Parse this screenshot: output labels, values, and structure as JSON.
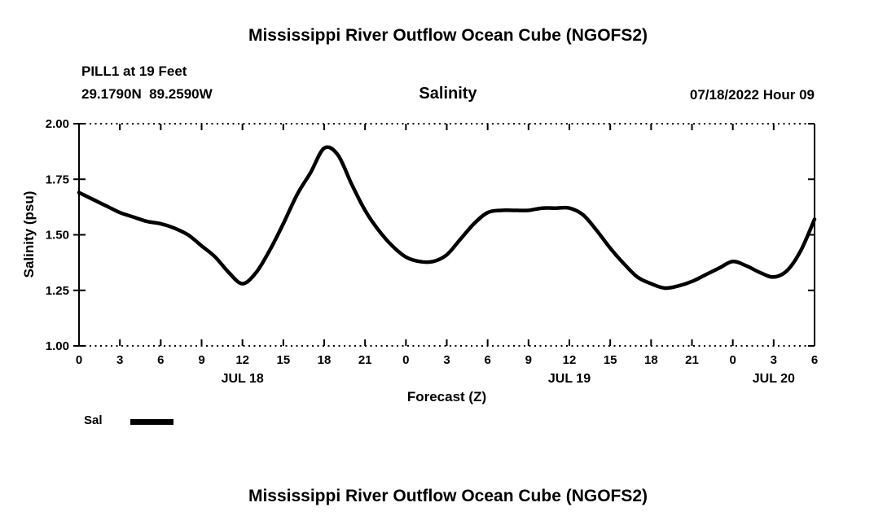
{
  "chart_data": {
    "type": "line",
    "title": "Mississippi River Outflow Ocean Cube (NGOFS2)",
    "subtitle": "Salinity",
    "station": "PILL1 at 19 Feet",
    "coordinates": "29.1790N  89.2590W",
    "datetime": "07/18/2022 Hour 09",
    "xlabel": "Forecast (Z)",
    "ylabel": "Salinity (psu)",
    "ylim": [
      1.0,
      2.0
    ],
    "xlim": [
      0,
      54
    ],
    "line_color": "#000000",
    "y_ticks": [
      {
        "value": 2.0,
        "label": "2.00"
      },
      {
        "value": 1.75,
        "label": "1.75"
      },
      {
        "value": 1.5,
        "label": "1.50"
      },
      {
        "value": 1.25,
        "label": "1.25"
      },
      {
        "value": 1.0,
        "label": "1.00"
      }
    ],
    "x_ticks": [
      {
        "hour": 0,
        "label": "0"
      },
      {
        "hour": 3,
        "label": "3"
      },
      {
        "hour": 6,
        "label": "6"
      },
      {
        "hour": 9,
        "label": "9"
      },
      {
        "hour": 12,
        "label": "12"
      },
      {
        "hour": 15,
        "label": "15"
      },
      {
        "hour": 18,
        "label": "18"
      },
      {
        "hour": 21,
        "label": "21"
      },
      {
        "hour": 24,
        "label": "0"
      },
      {
        "hour": 27,
        "label": "3"
      },
      {
        "hour": 30,
        "label": "6"
      },
      {
        "hour": 33,
        "label": "9"
      },
      {
        "hour": 36,
        "label": "12"
      },
      {
        "hour": 39,
        "label": "15"
      },
      {
        "hour": 42,
        "label": "18"
      },
      {
        "hour": 45,
        "label": "21"
      },
      {
        "hour": 48,
        "label": "0"
      },
      {
        "hour": 51,
        "label": "3"
      },
      {
        "hour": 54,
        "label": "6"
      }
    ],
    "day_labels": [
      {
        "hour": 12,
        "label": "JUL 18"
      },
      {
        "hour": 36,
        "label": "JUL 19"
      },
      {
        "hour": 51,
        "label": "JUL 20"
      }
    ],
    "legend": {
      "label": "Sal"
    },
    "series": [
      {
        "name": "Sal",
        "x": [
          0,
          1,
          2,
          3,
          4,
          5,
          6,
          7,
          8,
          9,
          10,
          11,
          12,
          13,
          14,
          15,
          16,
          17,
          18,
          19,
          20,
          21,
          22,
          23,
          24,
          25,
          26,
          27,
          28,
          29,
          30,
          31,
          32,
          33,
          34,
          35,
          36,
          37,
          38,
          39,
          40,
          41,
          42,
          43,
          44,
          45,
          46,
          47,
          48,
          49,
          50,
          51,
          52,
          53,
          54
        ],
        "y": [
          1.69,
          1.66,
          1.63,
          1.6,
          1.58,
          1.56,
          1.55,
          1.53,
          1.5,
          1.45,
          1.4,
          1.33,
          1.28,
          1.33,
          1.43,
          1.55,
          1.68,
          1.78,
          1.89,
          1.86,
          1.73,
          1.61,
          1.52,
          1.45,
          1.4,
          1.38,
          1.38,
          1.41,
          1.48,
          1.55,
          1.6,
          1.61,
          1.61,
          1.61,
          1.62,
          1.62,
          1.62,
          1.59,
          1.52,
          1.44,
          1.37,
          1.31,
          1.28,
          1.26,
          1.27,
          1.29,
          1.32,
          1.35,
          1.38,
          1.36,
          1.33,
          1.31,
          1.34,
          1.43,
          1.57
        ]
      }
    ]
  }
}
